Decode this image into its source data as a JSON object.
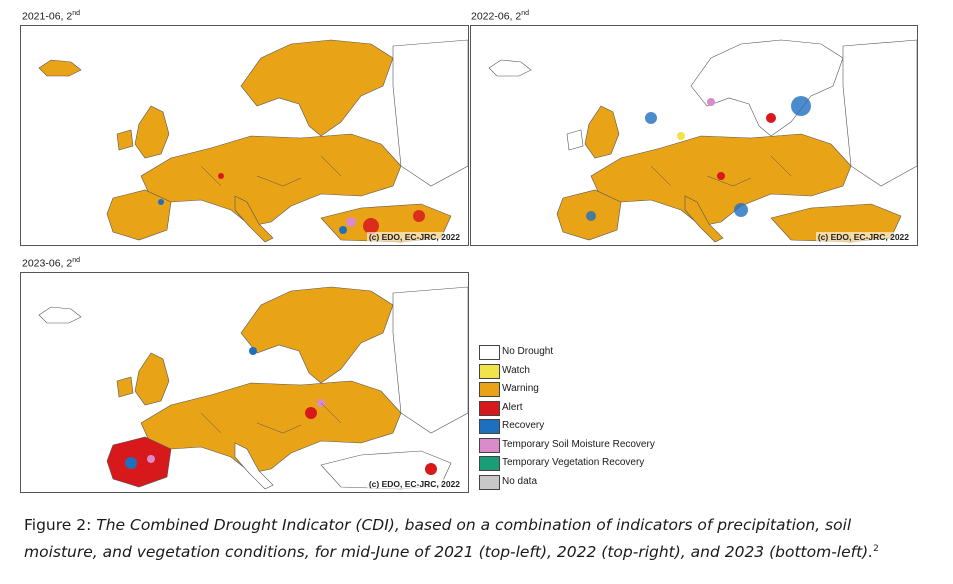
{
  "panels": [
    {
      "label": "2021-06, 2",
      "sup": "nd",
      "copyright": "(c) EDO, EC-JRC, 2022"
    },
    {
      "label": "2022-06, 2",
      "sup": "nd",
      "copyright": "(c) EDO, EC-JRC, 2022"
    },
    {
      "label": "2023-06, 2",
      "sup": "nd",
      "copyright": "(c) EDO, EC-JRC, 2022"
    }
  ],
  "legend": [
    {
      "label": "No Drought",
      "color": "#ffffff"
    },
    {
      "label": "Watch",
      "color": "#f2e34a"
    },
    {
      "label": "Warning",
      "color": "#e8a317"
    },
    {
      "label": "Alert",
      "color": "#d7191c"
    },
    {
      "label": "Recovery",
      "color": "#1f6fbf"
    },
    {
      "label": "Temporary Soil Moisture Recovery",
      "color": "#d98cc9"
    },
    {
      "label": "Temporary Vegetation Recovery",
      "color": "#1a9e77"
    },
    {
      "label": "No data",
      "color": "#c8c8c8"
    }
  ],
  "caption": {
    "prefix": "Figure 2: ",
    "text": "The Combined Drought Indicator (CDI), based on a combination of indicators of precipitation, soil moisture, and vegetation conditions, for mid-June of 2021 (top-left), 2022 (top-right), and 2023 (bottom-left).",
    "sup": "2"
  }
}
